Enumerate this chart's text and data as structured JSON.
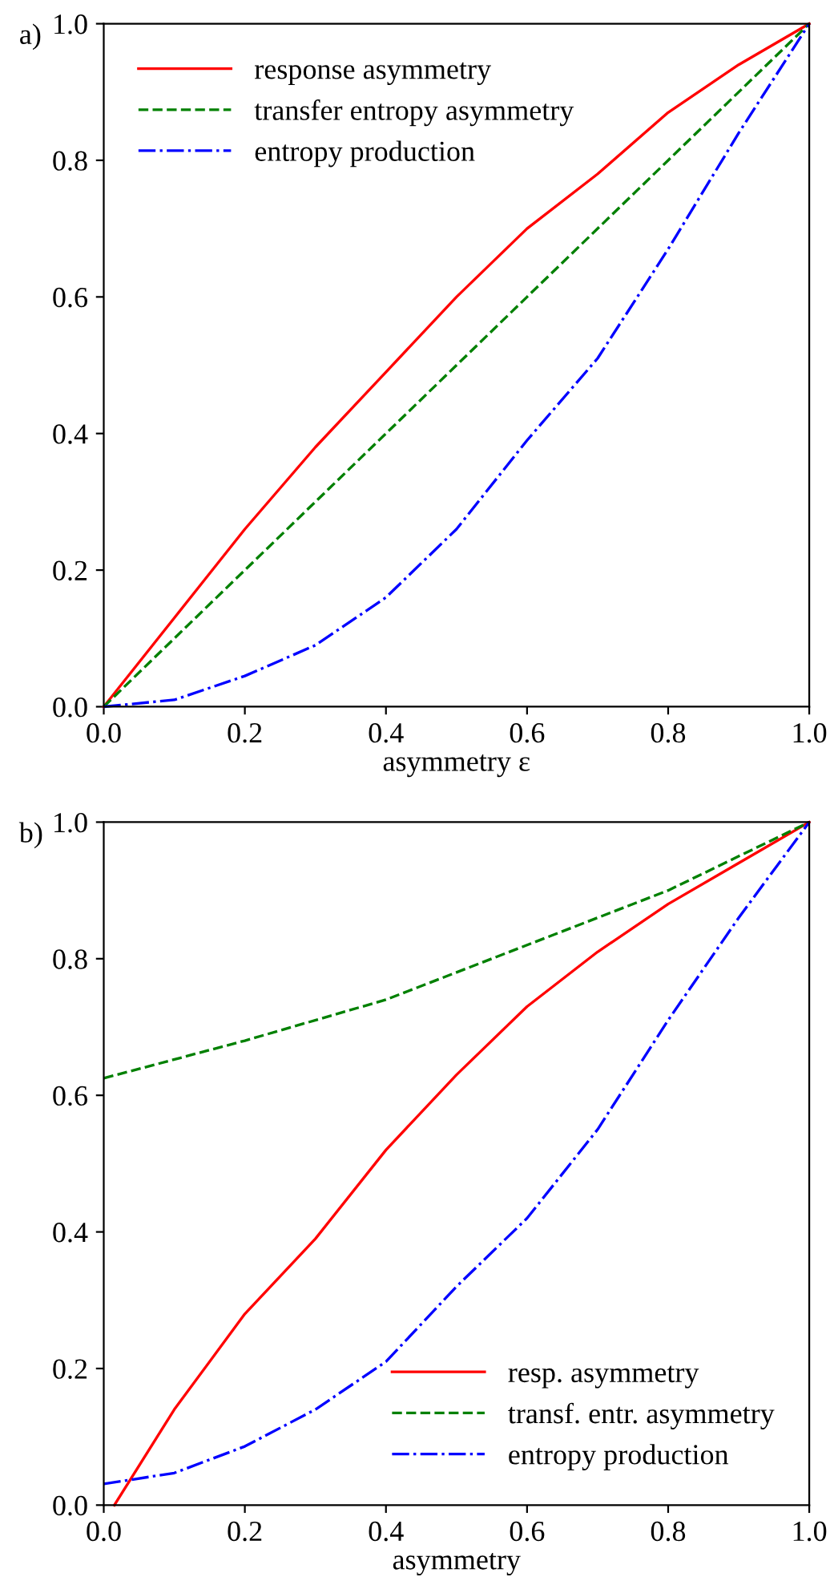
{
  "chart_data": [
    {
      "type": "line",
      "xlabel": "asymmetry ε",
      "annotations": [
        "a)"
      ],
      "legend": "top left",
      "xlim": [
        0,
        1
      ],
      "ylim": [
        0,
        1
      ],
      "xticks": [
        {
          "value": 0,
          "label": "0.0"
        },
        {
          "value": 0.2,
          "label": "0.2"
        },
        {
          "value": 0.4,
          "label": "0.4"
        },
        {
          "value": 0.6,
          "label": "0.6"
        },
        {
          "value": 0.8,
          "label": "0.8"
        },
        {
          "value": 1,
          "label": "1.0"
        }
      ],
      "yticks": [
        {
          "value": 0,
          "label": "0.0"
        },
        {
          "value": 0.2,
          "label": "0.2"
        },
        {
          "value": 0.4,
          "label": "0.4"
        },
        {
          "value": 0.6,
          "label": "0.6"
        },
        {
          "value": 0.8,
          "label": "0.8"
        },
        {
          "value": 1,
          "label": "1.0"
        }
      ],
      "series": [
        {
          "name": "response asymmetry",
          "color": "#ff0000",
          "line_style": "solid",
          "x": [
            0,
            0.1,
            0.2,
            0.3,
            0.4,
            0.5,
            0.6,
            0.7,
            0.8,
            0.9,
            1.0
          ],
          "values": [
            0,
            0.13,
            0.26,
            0.38,
            0.49,
            0.6,
            0.7,
            0.78,
            0.87,
            0.94,
            1.0
          ]
        },
        {
          "name": "transfer entropy asymmetry",
          "color": "#008000",
          "line_style": "dashed",
          "x": [
            0,
            0.2,
            0.4,
            0.6,
            0.8,
            1.0
          ],
          "values": [
            0,
            0.2,
            0.4,
            0.6,
            0.8,
            1.0
          ]
        },
        {
          "name": "entropy production",
          "color": "#0000ff",
          "line_style": "dashdot",
          "x": [
            0,
            0.1,
            0.2,
            0.3,
            0.4,
            0.5,
            0.6,
            0.7,
            0.8,
            0.9,
            0.95,
            1.0
          ],
          "values": [
            0,
            0.01,
            0.045,
            0.09,
            0.16,
            0.26,
            0.39,
            0.51,
            0.67,
            0.84,
            0.92,
            1.0
          ]
        }
      ]
    },
    {
      "type": "line",
      "xlabel": "asymmetry",
      "annotations": [
        "b)"
      ],
      "legend": "bottom right",
      "xlim": [
        0,
        1
      ],
      "ylim": [
        0,
        1
      ],
      "xticks": [
        {
          "value": 0,
          "label": "0.0"
        },
        {
          "value": 0.2,
          "label": "0.2"
        },
        {
          "value": 0.4,
          "label": "0.4"
        },
        {
          "value": 0.6,
          "label": "0.6"
        },
        {
          "value": 0.8,
          "label": "0.8"
        },
        {
          "value": 1,
          "label": "1.0"
        }
      ],
      "yticks": [
        {
          "value": 0,
          "label": "0.0"
        },
        {
          "value": 0.2,
          "label": "0.2"
        },
        {
          "value": 0.4,
          "label": "0.4"
        },
        {
          "value": 0.6,
          "label": "0.6"
        },
        {
          "value": 0.8,
          "label": "0.8"
        },
        {
          "value": 1,
          "label": "1.0"
        }
      ],
      "series": [
        {
          "name": "resp. asymmetry",
          "color": "#ff0000",
          "line_style": "solid",
          "x": [
            0.015,
            0.1,
            0.2,
            0.3,
            0.4,
            0.5,
            0.6,
            0.7,
            0.8,
            0.9,
            1.0
          ],
          "values": [
            0,
            0.14,
            0.28,
            0.39,
            0.52,
            0.63,
            0.73,
            0.81,
            0.88,
            0.94,
            1.0
          ]
        },
        {
          "name": "transf. entr. asymmetry",
          "color": "#008000",
          "line_style": "dashed",
          "x": [
            0,
            0.2,
            0.4,
            0.6,
            0.8,
            1.0
          ],
          "values": [
            0.625,
            0.68,
            0.74,
            0.82,
            0.9,
            1.0
          ]
        },
        {
          "name": "entropy production",
          "color": "#0000ff",
          "line_style": "dashdot",
          "x": [
            0,
            0.1,
            0.2,
            0.3,
            0.4,
            0.5,
            0.6,
            0.7,
            0.8,
            0.9,
            1.0
          ],
          "values": [
            0.031,
            0.047,
            0.086,
            0.14,
            0.21,
            0.32,
            0.42,
            0.55,
            0.71,
            0.86,
            1.0
          ]
        }
      ]
    }
  ]
}
